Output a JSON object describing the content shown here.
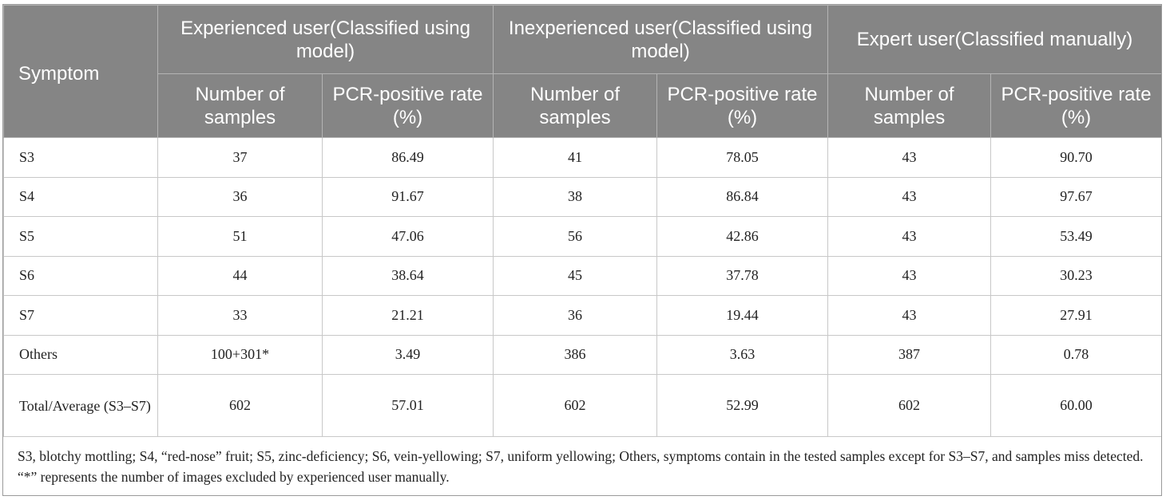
{
  "table": {
    "header": {
      "symptom": "Symptom",
      "groups": [
        "Experienced user(Classified using model)",
        "Inexperienced user(Classified using model)",
        "Expert user(Classified manually)"
      ],
      "sub": {
        "samples": "Number of samples",
        "rate": "PCR-positive rate (%)"
      }
    },
    "rows": [
      [
        "S3",
        "37",
        "86.49",
        "41",
        "78.05",
        "43",
        "90.70"
      ],
      [
        "S4",
        "36",
        "91.67",
        "38",
        "86.84",
        "43",
        "97.67"
      ],
      [
        "S5",
        "51",
        "47.06",
        "56",
        "42.86",
        "43",
        "53.49"
      ],
      [
        "S6",
        "44",
        "38.64",
        "45",
        "37.78",
        "43",
        "30.23"
      ],
      [
        "S7",
        "33",
        "21.21",
        "36",
        "19.44",
        "43",
        "27.91"
      ],
      [
        "Others",
        "100+301*",
        "3.49",
        "386",
        "3.63",
        "387",
        "0.78"
      ],
      [
        "Total/Average (S3–S7)",
        "602",
        "57.01",
        "602",
        "52.99",
        "602",
        "60.00"
      ]
    ]
  },
  "footnote": "S3, blotchy mottling; S4, “red-nose” fruit; S5, zinc-deficiency; S6, vein-yellowing; S7, uniform yellowing; Others, symptoms contain in the tested samples except for S3–S7, and samples miss detected. “*” represents the number of images excluded by experienced user manually."
}
